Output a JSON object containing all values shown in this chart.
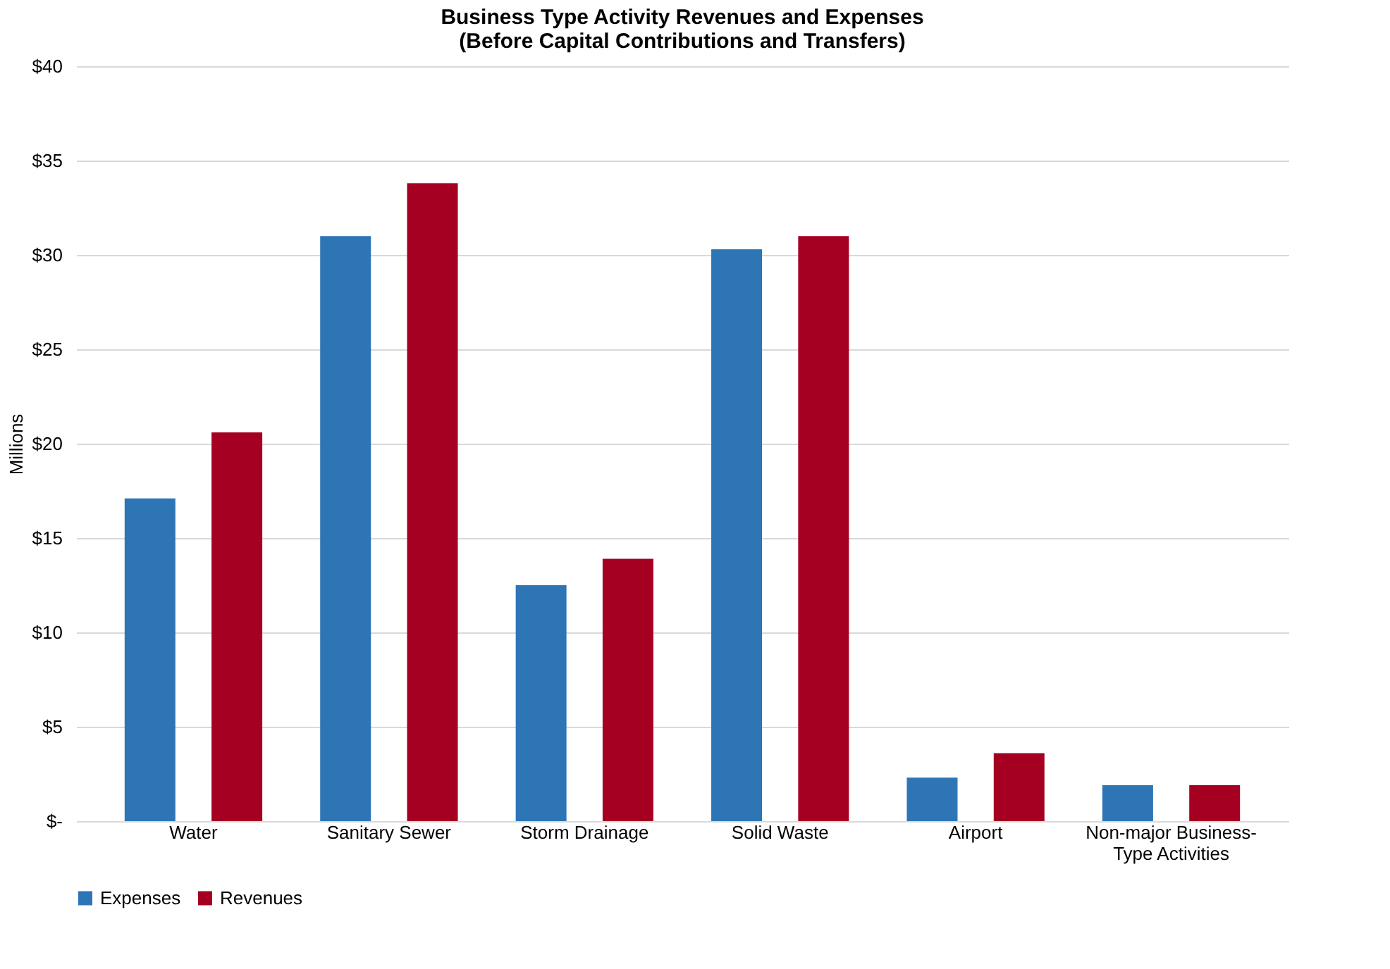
{
  "chart_data": {
    "type": "bar",
    "title": "Business Type Activity Revenues and Expenses\n(Before Capital Contributions and Transfers)",
    "ylabel": "Millions",
    "categories": [
      "Water",
      "Sanitary Sewer",
      "Storm Drainage",
      "Solid Waste",
      "Airport",
      "Non-major Business-Type Activities"
    ],
    "series": [
      {
        "name": "Expenses",
        "color": "#2e75b6",
        "values": [
          17.1,
          31.0,
          12.5,
          30.3,
          2.3,
          1.9
        ]
      },
      {
        "name": "Revenues",
        "color": "#a50021",
        "values": [
          20.6,
          33.8,
          13.9,
          31.0,
          3.6,
          1.9
        ]
      }
    ],
    "ylim": [
      0,
      40
    ],
    "yticks": [
      {
        "value": 0,
        "label": "$-"
      },
      {
        "value": 5,
        "label": "$5"
      },
      {
        "value": 10,
        "label": "$10"
      },
      {
        "value": 15,
        "label": "$15"
      },
      {
        "value": 20,
        "label": "$20"
      },
      {
        "value": 25,
        "label": "$25"
      },
      {
        "value": 30,
        "label": "$30"
      },
      {
        "value": 35,
        "label": "$35"
      },
      {
        "value": 40,
        "label": "$40"
      }
    ],
    "grid": "y",
    "legend": "bottom"
  }
}
